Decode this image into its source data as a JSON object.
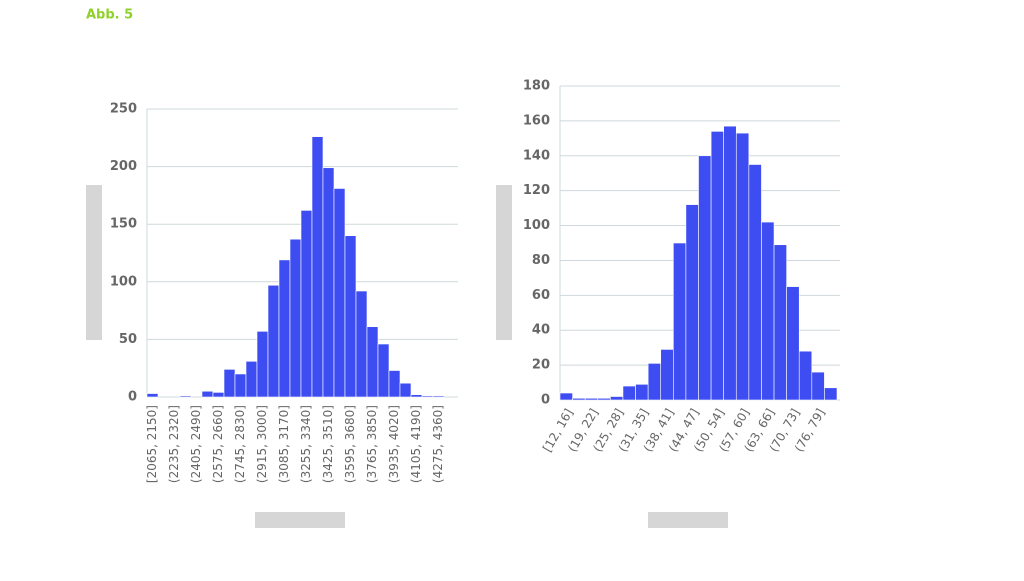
{
  "figure_label": "Abb. 5",
  "chart_data": [
    {
      "type": "bar",
      "color": "#3d4df2",
      "grid": true,
      "categories": [
        "[2065, 2150]",
        null,
        "(2235, 2320]",
        null,
        "(2405, 2490]",
        null,
        "(2575, 2660]",
        null,
        "(2745, 2830]",
        null,
        "(2915, 3000]",
        null,
        "(3085, 3170]",
        null,
        "(3255, 3340]",
        null,
        "(3425, 3510]",
        null,
        "(3595, 3680]",
        null,
        "(3765, 3850]",
        null,
        "(3935, 4020]",
        null,
        "(4105, 4190]",
        null,
        "(4275, 4360]",
        null
      ],
      "values": [
        3,
        0,
        0,
        1,
        0,
        5,
        4,
        24,
        20,
        31,
        57,
        97,
        119,
        137,
        162,
        226,
        199,
        181,
        140,
        92,
        61,
        46,
        23,
        12,
        2,
        1,
        1,
        0
      ],
      "ylim": [
        0,
        250
      ],
      "yticks": [
        0,
        50,
        100,
        150,
        200,
        250
      ]
    },
    {
      "type": "bar",
      "color": "#3d4df2",
      "grid": true,
      "categories": [
        "[12, 16]",
        null,
        "(19, 22]",
        null,
        "(25, 28]",
        null,
        "(31, 35]",
        null,
        "(38, 41]",
        null,
        "(44, 47]",
        null,
        "(50, 54]",
        null,
        "(57, 60]",
        null,
        "(63, 66]",
        null,
        "(70, 73]",
        null,
        "(76, 79]",
        null
      ],
      "values": [
        4,
        1,
        1,
        1,
        2,
        8,
        9,
        21,
        29,
        90,
        112,
        140,
        154,
        157,
        153,
        135,
        102,
        89,
        65,
        28,
        16,
        7
      ],
      "ylim": [
        0,
        180
      ],
      "yticks": [
        0,
        20,
        40,
        60,
        80,
        100,
        120,
        140,
        160,
        180
      ]
    }
  ]
}
